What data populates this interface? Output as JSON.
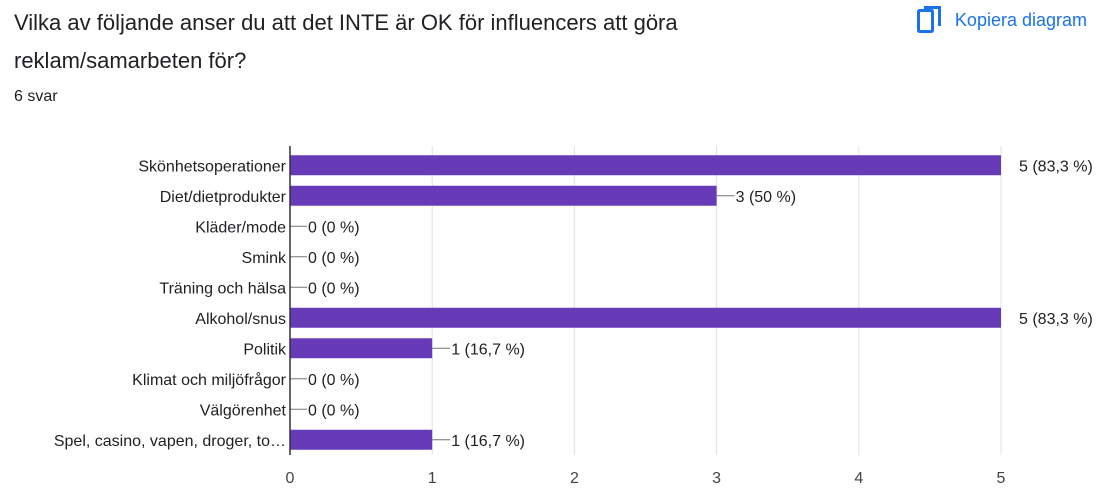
{
  "question": {
    "title": "Vilka av följande anser du att det INTE är OK för influencers att göra reklam/samarbeten för?",
    "response_count": "6 svar"
  },
  "toolbar": {
    "copy_label": "Kopiera diagram",
    "copy_icon": "copy-icon"
  },
  "colors": {
    "bar": "#673ab7",
    "accent": "#1a73e8",
    "text": "#202124",
    "grid": "#e0e0e0"
  },
  "chart_data": {
    "type": "bar",
    "orientation": "horizontal",
    "categories": [
      "Skönhetsoperationer",
      "Diet/dietprodukter",
      "Kläder/mode",
      "Smink",
      "Träning och hälsa",
      "Alkohol/snus",
      "Politik",
      "Klimat och miljöfrågor",
      "Välgörenhet",
      "Spel, casino, vapen, droger, to…"
    ],
    "values": [
      5,
      3,
      0,
      0,
      0,
      5,
      1,
      0,
      0,
      1
    ],
    "data_labels": [
      "5 (83,3 %)",
      "3 (50 %)",
      "0 (0 %)",
      "0 (0 %)",
      "0 (0 %)",
      "5 (83,3 %)",
      "1 (16,7 %)",
      "0 (0 %)",
      "0 (0 %)",
      "1 (16,7 %)"
    ],
    "xlim": [
      0,
      5
    ],
    "xticks": [
      "0",
      "1",
      "2",
      "3",
      "4",
      "5"
    ],
    "grid": true,
    "legend": "none"
  }
}
